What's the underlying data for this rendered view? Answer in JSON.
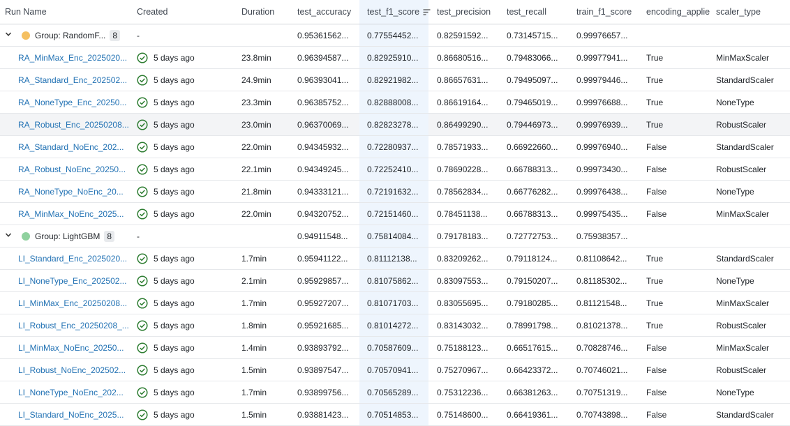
{
  "columns": {
    "run_name": "Run Name",
    "created": "Created",
    "duration": "Duration",
    "test_accuracy": "test_accuracy",
    "test_f1_score": "test_f1_score",
    "test_precision": "test_precision",
    "test_recall": "test_recall",
    "train_f1_score": "train_f1_score",
    "encoding_applied": "encoding_applie",
    "scaler_type": "scaler_type"
  },
  "groups": [
    {
      "label": "Group: RandomF...",
      "count": "8",
      "color": "#f5c062",
      "created": "-",
      "test_accuracy": "0.95361562...",
      "test_f1_score": "0.77554452...",
      "test_precision": "0.82591592...",
      "test_recall": "0.73145715...",
      "train_f1_score": "0.99976657...",
      "runs": [
        {
          "name": "RA_MinMax_Enc_2025020...",
          "created": "5 days ago",
          "duration": "23.8min",
          "test_accuracy": "0.96394587...",
          "test_f1_score": "0.82925910...",
          "test_precision": "0.86680516...",
          "test_recall": "0.79483066...",
          "train_f1_score": "0.99977941...",
          "encoding": "True",
          "scaler": "MinMaxScaler"
        },
        {
          "name": "RA_Standard_Enc_202502...",
          "created": "5 days ago",
          "duration": "24.9min",
          "test_accuracy": "0.96393041...",
          "test_f1_score": "0.82921982...",
          "test_precision": "0.86657631...",
          "test_recall": "0.79495097...",
          "train_f1_score": "0.99979446...",
          "encoding": "True",
          "scaler": "StandardScaler"
        },
        {
          "name": "RA_NoneType_Enc_20250...",
          "created": "5 days ago",
          "duration": "23.3min",
          "test_accuracy": "0.96385752...",
          "test_f1_score": "0.82888008...",
          "test_precision": "0.86619164...",
          "test_recall": "0.79465019...",
          "train_f1_score": "0.99976688...",
          "encoding": "True",
          "scaler": "NoneType"
        },
        {
          "name": "RA_Robust_Enc_20250208...",
          "created": "5 days ago",
          "duration": "23.0min",
          "test_accuracy": "0.96370069...",
          "test_f1_score": "0.82823278...",
          "test_precision": "0.86499290...",
          "test_recall": "0.79446973...",
          "train_f1_score": "0.99976939...",
          "encoding": "True",
          "scaler": "RobustScaler"
        },
        {
          "name": "RA_Standard_NoEnc_202...",
          "created": "5 days ago",
          "duration": "22.0min",
          "test_accuracy": "0.94345932...",
          "test_f1_score": "0.72280937...",
          "test_precision": "0.78571933...",
          "test_recall": "0.66922660...",
          "train_f1_score": "0.99976940...",
          "encoding": "False",
          "scaler": "StandardScaler"
        },
        {
          "name": "RA_Robust_NoEnc_20250...",
          "created": "5 days ago",
          "duration": "22.1min",
          "test_accuracy": "0.94349245...",
          "test_f1_score": "0.72252410...",
          "test_precision": "0.78690228...",
          "test_recall": "0.66788313...",
          "train_f1_score": "0.99973430...",
          "encoding": "False",
          "scaler": "RobustScaler"
        },
        {
          "name": "RA_NoneType_NoEnc_20...",
          "created": "5 days ago",
          "duration": "21.8min",
          "test_accuracy": "0.94333121...",
          "test_f1_score": "0.72191632...",
          "test_precision": "0.78562834...",
          "test_recall": "0.66776282...",
          "train_f1_score": "0.99976438...",
          "encoding": "False",
          "scaler": "NoneType"
        },
        {
          "name": "RA_MinMax_NoEnc_2025...",
          "created": "5 days ago",
          "duration": "22.0min",
          "test_accuracy": "0.94320752...",
          "test_f1_score": "0.72151460...",
          "test_precision": "0.78451138...",
          "test_recall": "0.66788313...",
          "train_f1_score": "0.99975435...",
          "encoding": "False",
          "scaler": "MinMaxScaler"
        }
      ]
    },
    {
      "label": "Group: LightGBM",
      "count": "8",
      "color": "#8fd19e",
      "created": "-",
      "test_accuracy": "0.94911548...",
      "test_f1_score": "0.75814084...",
      "test_precision": "0.79178183...",
      "test_recall": "0.72772753...",
      "train_f1_score": "0.75938357...",
      "runs": [
        {
          "name": "LI_Standard_Enc_2025020...",
          "created": "5 days ago",
          "duration": "1.7min",
          "test_accuracy": "0.95941122...",
          "test_f1_score": "0.81112138...",
          "test_precision": "0.83209262...",
          "test_recall": "0.79118124...",
          "train_f1_score": "0.81108642...",
          "encoding": "True",
          "scaler": "StandardScaler"
        },
        {
          "name": "LI_NoneType_Enc_202502...",
          "created": "5 days ago",
          "duration": "2.1min",
          "test_accuracy": "0.95929857...",
          "test_f1_score": "0.81075862...",
          "test_precision": "0.83097553...",
          "test_recall": "0.79150207...",
          "train_f1_score": "0.81185302...",
          "encoding": "True",
          "scaler": "NoneType"
        },
        {
          "name": "LI_MinMax_Enc_20250208...",
          "created": "5 days ago",
          "duration": "1.7min",
          "test_accuracy": "0.95927207...",
          "test_f1_score": "0.81071703...",
          "test_precision": "0.83055695...",
          "test_recall": "0.79180285...",
          "train_f1_score": "0.81121548...",
          "encoding": "True",
          "scaler": "MinMaxScaler"
        },
        {
          "name": "LI_Robust_Enc_20250208_...",
          "created": "5 days ago",
          "duration": "1.8min",
          "test_accuracy": "0.95921685...",
          "test_f1_score": "0.81014272...",
          "test_precision": "0.83143032...",
          "test_recall": "0.78991798...",
          "train_f1_score": "0.81021378...",
          "encoding": "True",
          "scaler": "RobustScaler"
        },
        {
          "name": "LI_MinMax_NoEnc_20250...",
          "created": "5 days ago",
          "duration": "1.4min",
          "test_accuracy": "0.93893792...",
          "test_f1_score": "0.70587609...",
          "test_precision": "0.75188123...",
          "test_recall": "0.66517615...",
          "train_f1_score": "0.70828746...",
          "encoding": "False",
          "scaler": "MinMaxScaler"
        },
        {
          "name": "LI_Robust_NoEnc_202502...",
          "created": "5 days ago",
          "duration": "1.5min",
          "test_accuracy": "0.93897547...",
          "test_f1_score": "0.70570941...",
          "test_precision": "0.75270967...",
          "test_recall": "0.66423372...",
          "train_f1_score": "0.70746021...",
          "encoding": "False",
          "scaler": "RobustScaler"
        },
        {
          "name": "LI_NoneType_NoEnc_202...",
          "created": "5 days ago",
          "duration": "1.7min",
          "test_accuracy": "0.93899756...",
          "test_f1_score": "0.70565289...",
          "test_precision": "0.75312236...",
          "test_recall": "0.66381263...",
          "train_f1_score": "0.70751319...",
          "encoding": "False",
          "scaler": "NoneType"
        },
        {
          "name": "LI_Standard_NoEnc_2025...",
          "created": "5 days ago",
          "duration": "1.5min",
          "test_accuracy": "0.93881423...",
          "test_f1_score": "0.70514853...",
          "test_precision": "0.75148600...",
          "test_recall": "0.66419361...",
          "train_f1_score": "0.70743898...",
          "encoding": "False",
          "scaler": "StandardScaler"
        }
      ]
    }
  ],
  "icons": {
    "status": "check-circle-icon",
    "sort": "sort-lines-icon",
    "expand": "chevron-down-icon"
  },
  "colors": {
    "link": "#2272b4",
    "status_ok": "#2e7d32",
    "sorted_column_bg": "#eef5fd"
  }
}
